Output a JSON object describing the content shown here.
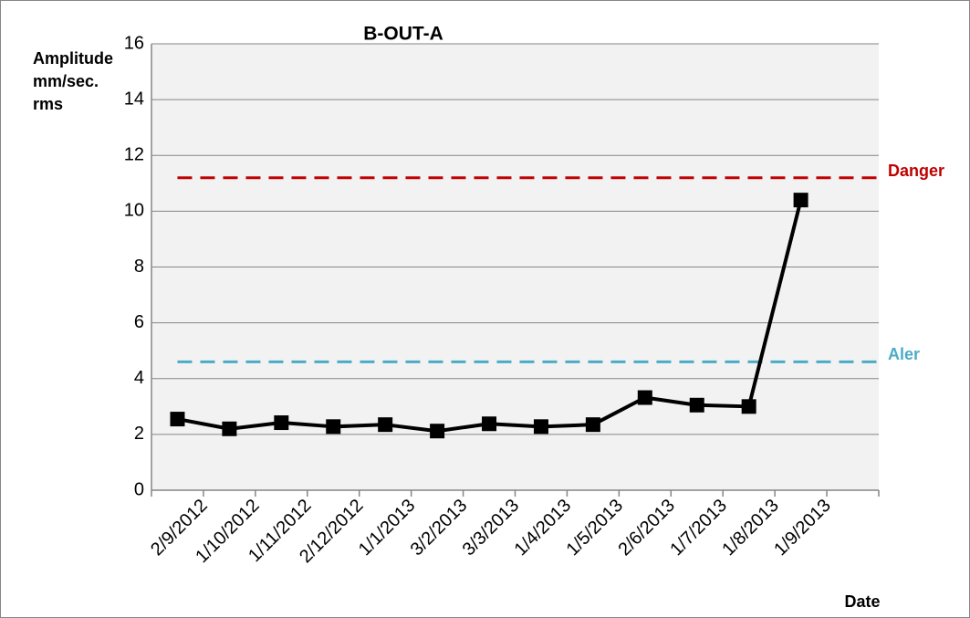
{
  "chart_data": {
    "type": "line",
    "title": "B-OUT-A",
    "y_label": "Amplitude mm/sec. rms",
    "x_label": "Date",
    "categories": [
      "2/9/2012",
      "1/10/2012",
      "1/11/2012",
      "2/12/2012",
      "1/1/2013",
      "3/2/2013",
      "3/3/2013",
      "1/4/2013",
      "1/5/2013",
      "2/6/2013",
      "1/7/2013",
      "1/8/2013",
      "1/9/2013",
      null
    ],
    "series": [
      {
        "name": "B-OUT-A",
        "color": "#000000",
        "values": [
          2.55,
          2.2,
          2.42,
          2.28,
          2.35,
          2.12,
          2.38,
          2.28,
          2.35,
          3.32,
          3.05,
          3.0,
          10.4,
          null
        ]
      }
    ],
    "thresholds": [
      {
        "name": "Danger",
        "value": 11.2,
        "color": "#c00000"
      },
      {
        "name": "Aler",
        "value": 4.6,
        "color": "#4bacc6"
      }
    ],
    "ylim": [
      0,
      16
    ],
    "yticks": [
      0,
      2,
      4,
      6,
      8,
      10,
      12,
      14,
      16
    ],
    "grid": true
  }
}
